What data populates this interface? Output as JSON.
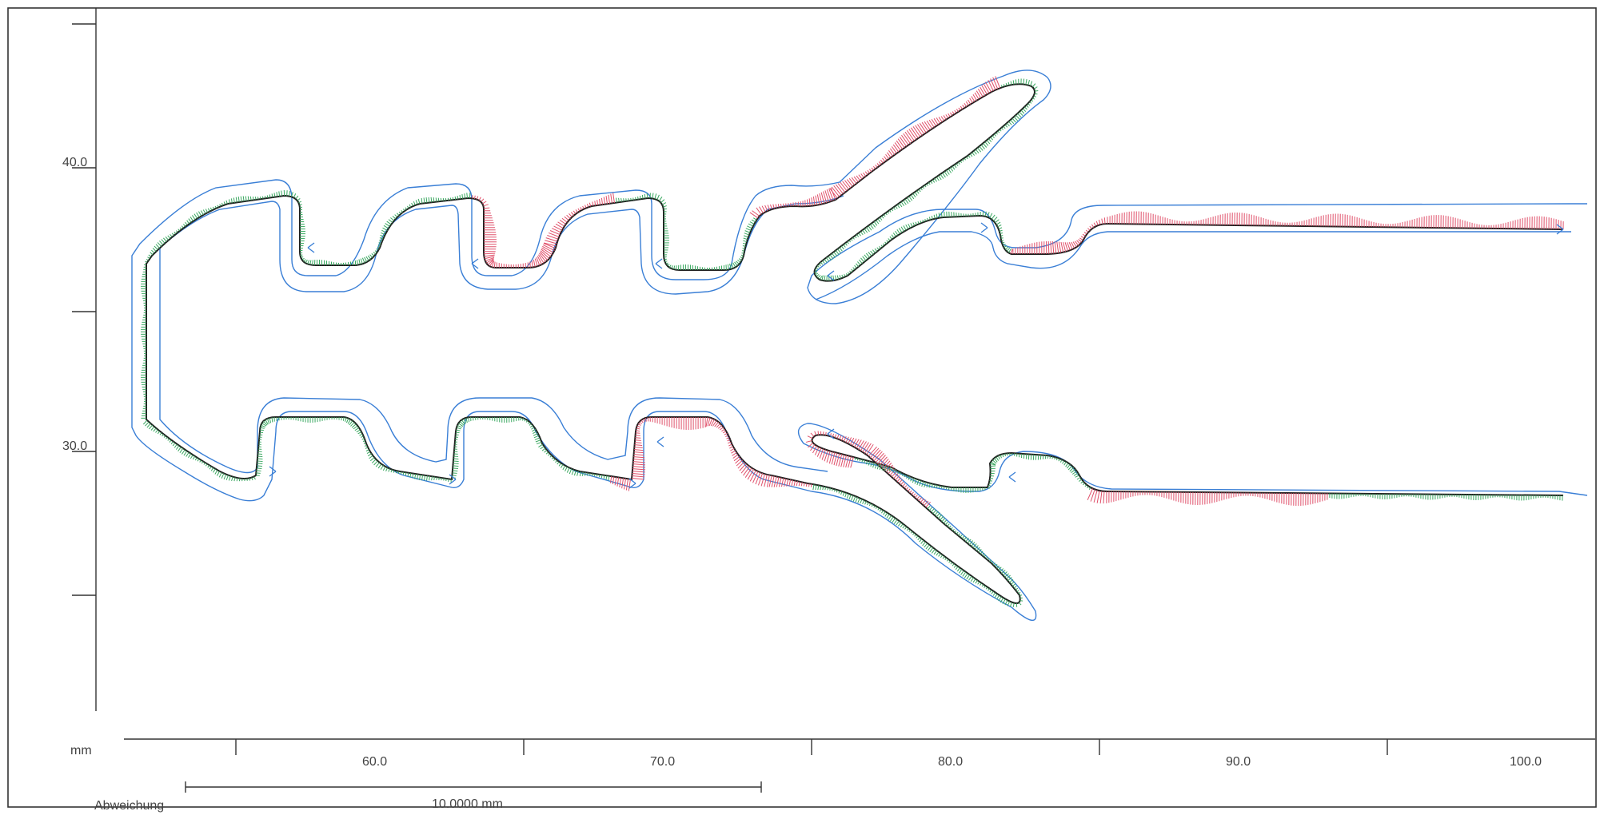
{
  "axis_labels": {
    "unit": "mm",
    "x_ticks": [
      "60.0",
      "70.0",
      "80.0",
      "90.0",
      "100.0"
    ],
    "y_ticks": [
      "40.0",
      "30.0"
    ]
  },
  "scale_bar": {
    "label": "Abweichung",
    "value": "10.0000 mm"
  },
  "colors": {
    "nominal": "#1f1f1f",
    "tolerance": "#3a7fd6",
    "deviation_in": "#3aa860",
    "deviation_out": "#e0506a"
  }
}
